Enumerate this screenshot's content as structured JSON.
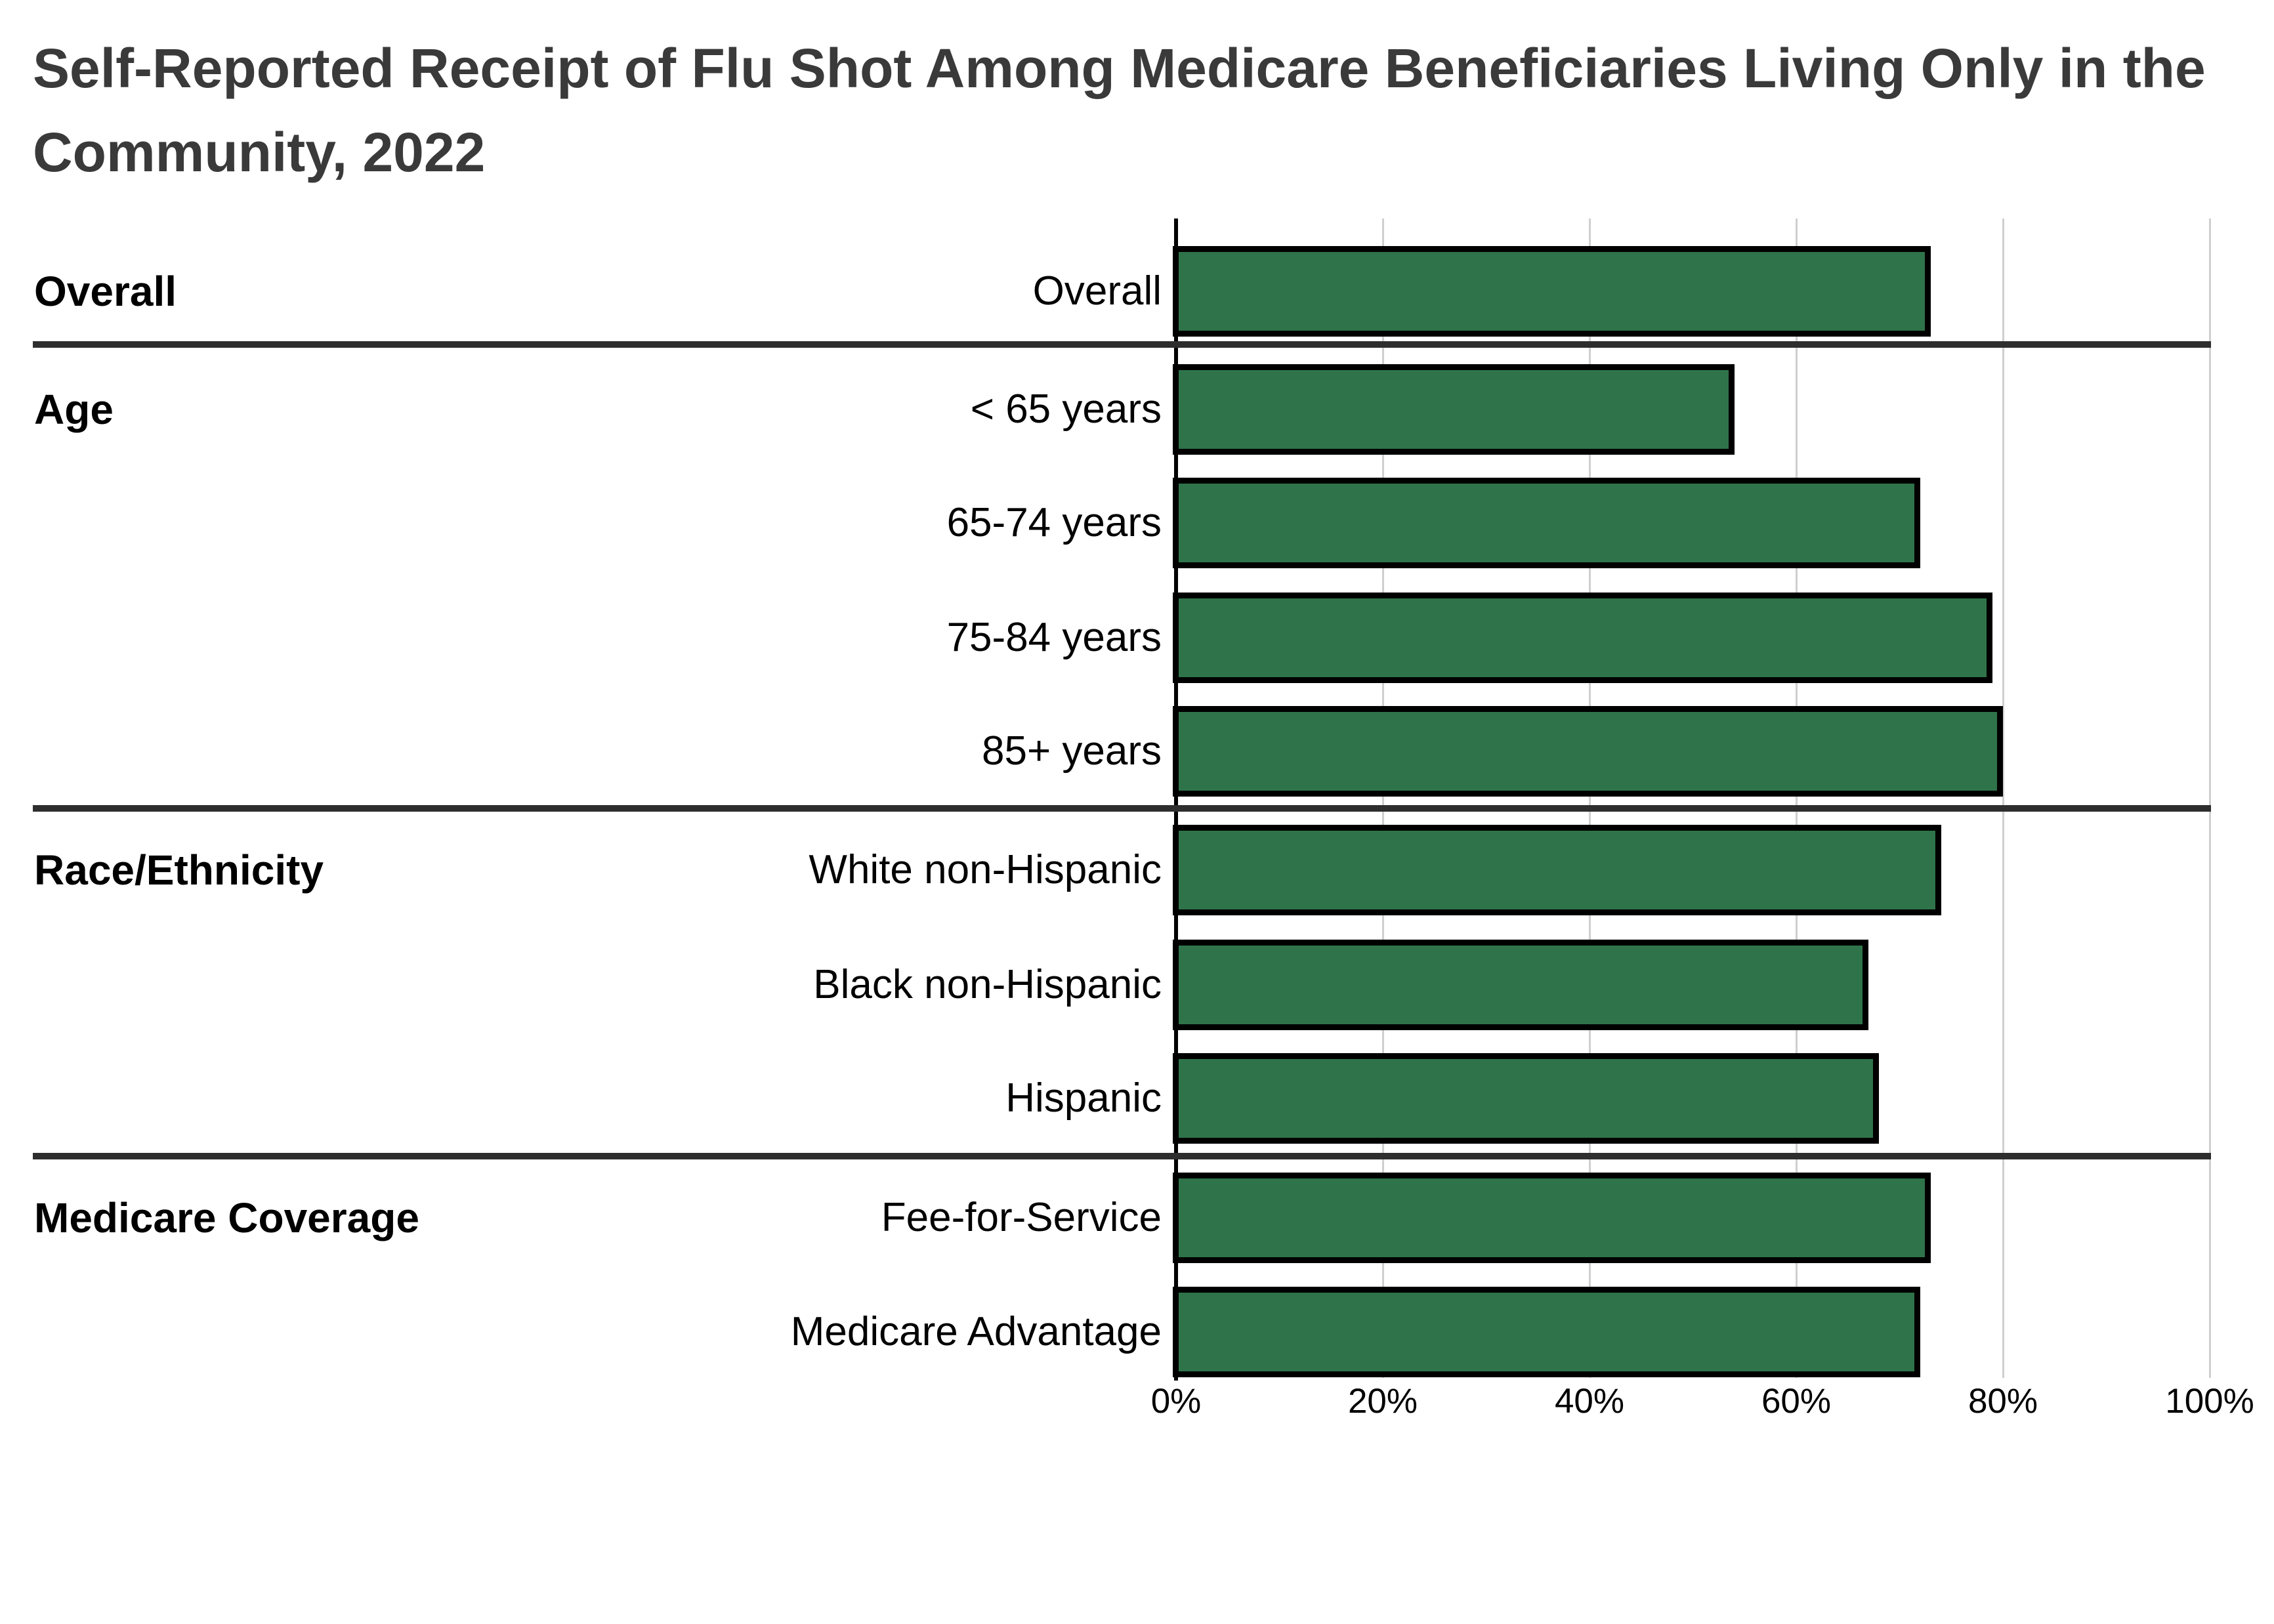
{
  "title": {
    "line1": "Self-Reported Receipt of Flu Shot Among Medicare Beneficiaries Living Only in the",
    "line2": "Community, 2022"
  },
  "chart_data": {
    "type": "bar",
    "orientation": "horizontal",
    "title": "Self-Reported Receipt of Flu Shot Among Medicare Beneficiaries Living Only in the Community, 2022",
    "value_unit": "percent",
    "xlim": [
      0,
      100
    ],
    "x_ticks": [
      "0%",
      "20%",
      "40%",
      "60%",
      "80%",
      "100%"
    ],
    "grid": "vertical-gridlines-on",
    "legend": "none",
    "bar_color": "#2F734A",
    "bar_border_color": "#000000",
    "groups": [
      {
        "label": "Overall",
        "rows": [
          {
            "label": "Overall",
            "value": 73
          }
        ]
      },
      {
        "label": "Age",
        "rows": [
          {
            "label": "< 65 years",
            "value": 54
          },
          {
            "label": "65-74 years",
            "value": 72
          },
          {
            "label": "75-84 years",
            "value": 79
          },
          {
            "label": "85+ years",
            "value": 80
          }
        ]
      },
      {
        "label": "Race/Ethnicity",
        "rows": [
          {
            "label": "White non-Hispanic",
            "value": 74
          },
          {
            "label": "Black non-Hispanic",
            "value": 67
          },
          {
            "label": "Hispanic",
            "value": 68
          }
        ]
      },
      {
        "label": "Medicare Coverage",
        "rows": [
          {
            "label": "Fee-for-Service",
            "value": 73
          },
          {
            "label": "Medicare Advantage",
            "value": 72
          }
        ]
      }
    ]
  }
}
